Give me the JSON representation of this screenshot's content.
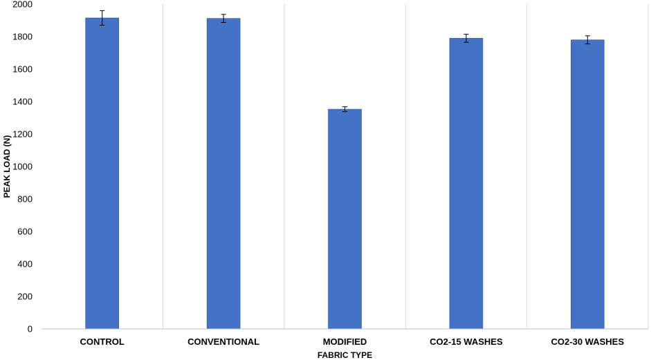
{
  "chart_data": {
    "type": "bar",
    "title": "",
    "xlabel": "FABRIC TYPE",
    "ylabel": "PEAK LOAD (N)",
    "ylim": [
      0,
      2000
    ],
    "yticks": [
      0,
      200,
      400,
      600,
      800,
      1000,
      1200,
      1400,
      1600,
      1800,
      2000
    ],
    "categories": [
      "CONTROL",
      "CONVENTIONAL",
      "MODIFIED",
      "CO2-15 WASHES",
      "CO2-30 WASHES"
    ],
    "values": [
      1915,
      1912,
      1353,
      1790,
      1780
    ],
    "error": [
      45,
      25,
      15,
      25,
      25
    ],
    "grid": "vertical category separators",
    "legend": "none",
    "colors": {
      "bar": "#4472C4",
      "bar_edge": "#2F5597",
      "grid": "#D9D9D9",
      "axis": "#BFBFBF",
      "error": "#000000"
    }
  }
}
